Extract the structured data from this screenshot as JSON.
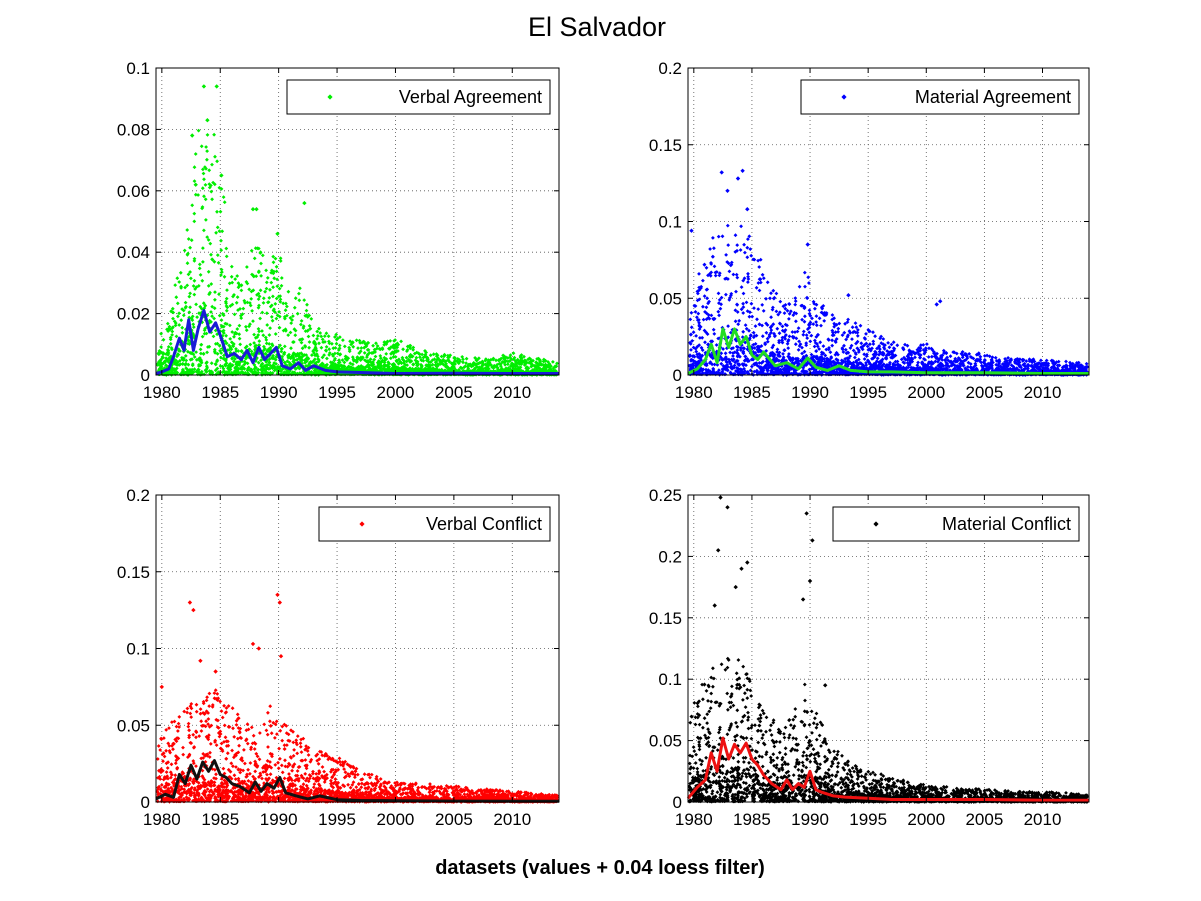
{
  "figure": {
    "title": "El Salvador",
    "xlabel": "datasets (values + 0.04 loess filter)"
  },
  "chart_data": [
    {
      "type": "scatter",
      "title": "",
      "legend": "Verbal Agreement",
      "legend_position": "top-right",
      "point_color": "#00ee00",
      "smooth_color": "#1a1ad6",
      "xlim": [
        1979.5,
        2014
      ],
      "ylim": [
        0,
        0.1
      ],
      "xticks": [
        1980,
        1985,
        1990,
        1995,
        2000,
        2005,
        2010
      ],
      "yticks": [
        0,
        0.02,
        0.04,
        0.06,
        0.08,
        0.1
      ],
      "ytick_labels": [
        "0",
        "0.02",
        "0.04",
        "0.06",
        "0.08",
        "0.1"
      ],
      "grid": true,
      "envelope": {
        "x": [
          1979.5,
          1980.5,
          1981.5,
          1982,
          1982.5,
          1983,
          1983.5,
          1984,
          1984.5,
          1985,
          1986,
          1987,
          1988,
          1989,
          1990,
          1991,
          1992,
          1993,
          1994,
          1996,
          1998,
          2000,
          2002,
          2005,
          2008,
          2010,
          2014
        ],
        "y": [
          0.016,
          0.02,
          0.035,
          0.045,
          0.06,
          0.08,
          0.09,
          0.08,
          0.095,
          0.07,
          0.035,
          0.03,
          0.05,
          0.033,
          0.045,
          0.025,
          0.03,
          0.017,
          0.014,
          0.012,
          0.01,
          0.012,
          0.008,
          0.006,
          0.005,
          0.007,
          0.004
        ]
      },
      "peaks": [
        [
          1983.6,
          0.094
        ],
        [
          1984.7,
          0.094
        ],
        [
          1983.9,
          0.083
        ],
        [
          1982.6,
          0.078
        ],
        [
          1987.8,
          0.054
        ],
        [
          1988.1,
          0.054
        ],
        [
          1992.2,
          0.056
        ],
        [
          1989.9,
          0.046
        ],
        [
          1985.1,
          0.065
        ],
        [
          1982.9,
          0.062
        ]
      ],
      "smooth": {
        "x": [
          1979.5,
          1980,
          1980.6,
          1981,
          1981.5,
          1981.9,
          1982.3,
          1982.7,
          1983.1,
          1983.6,
          1984.1,
          1984.6,
          1985,
          1985.6,
          1986.2,
          1986.8,
          1987.3,
          1987.8,
          1988.3,
          1988.8,
          1989.3,
          1989.8,
          1990.3,
          1991,
          1991.7,
          1992.3,
          1993,
          1994,
          1995,
          1997,
          2000,
          2005,
          2010,
          2014
        ],
        "y": [
          0.0005,
          0.001,
          0.002,
          0.006,
          0.012,
          0.008,
          0.018,
          0.008,
          0.015,
          0.021,
          0.014,
          0.017,
          0.013,
          0.006,
          0.007,
          0.005,
          0.008,
          0.004,
          0.009,
          0.005,
          0.007,
          0.009,
          0.003,
          0.002,
          0.004,
          0.0015,
          0.003,
          0.0015,
          0.001,
          0.0008,
          0.0005,
          0.0006,
          0.0005,
          0.0005
        ]
      }
    },
    {
      "type": "scatter",
      "title": "",
      "legend": "Material Agreement",
      "legend_position": "top-right",
      "point_color": "#0000ff",
      "smooth_color": "#22dd22",
      "xlim": [
        1979.5,
        2014
      ],
      "ylim": [
        0,
        0.2
      ],
      "xticks": [
        1980,
        1985,
        1990,
        1995,
        2000,
        2005,
        2010
      ],
      "yticks": [
        0,
        0.05,
        0.1,
        0.15,
        0.2
      ],
      "ytick_labels": [
        "0",
        "0.05",
        "0.1",
        "0.15",
        "0.2"
      ],
      "grid": true,
      "envelope": {
        "x": [
          1979.5,
          1980.5,
          1981.5,
          1982.5,
          1983.5,
          1984.5,
          1985.5,
          1986.5,
          1987.5,
          1988.5,
          1989.5,
          1990.5,
          1992,
          1994,
          1996,
          1998,
          2000,
          2002,
          2004,
          2006,
          2008,
          2010,
          2014
        ],
        "y": [
          0.03,
          0.07,
          0.09,
          0.1,
          0.1,
          0.1,
          0.08,
          0.06,
          0.05,
          0.045,
          0.07,
          0.05,
          0.04,
          0.035,
          0.025,
          0.02,
          0.02,
          0.015,
          0.015,
          0.012,
          0.01,
          0.01,
          0.007
        ]
      },
      "peaks": [
        [
          1982.4,
          0.132
        ],
        [
          1983.8,
          0.128
        ],
        [
          1984.2,
          0.133
        ],
        [
          1984.6,
          0.108
        ],
        [
          1979.8,
          0.094
        ],
        [
          1989.8,
          0.085
        ],
        [
          2001.2,
          0.048
        ],
        [
          2000.9,
          0.046
        ],
        [
          1993.3,
          0.052
        ],
        [
          1982.9,
          0.12
        ]
      ],
      "smooth": {
        "x": [
          1979.5,
          1980.3,
          1981,
          1981.5,
          1982,
          1982.5,
          1983,
          1983.5,
          1984,
          1984.5,
          1985,
          1985.5,
          1986,
          1987,
          1988,
          1989,
          1989.8,
          1990.5,
          1991.5,
          1992.5,
          1993.5,
          1995,
          1997,
          2000,
          2005,
          2010,
          2014
        ],
        "y": [
          0.001,
          0.004,
          0.01,
          0.02,
          0.008,
          0.03,
          0.018,
          0.03,
          0.02,
          0.025,
          0.013,
          0.01,
          0.015,
          0.006,
          0.008,
          0.004,
          0.011,
          0.005,
          0.003,
          0.006,
          0.003,
          0.002,
          0.002,
          0.0015,
          0.0015,
          0.001,
          0.001
        ]
      }
    },
    {
      "type": "scatter",
      "title": "",
      "legend": "Verbal Conflict",
      "legend_position": "top-right",
      "point_color": "#ff0000",
      "smooth_color": "#111111",
      "xlim": [
        1979.5,
        2014
      ],
      "ylim": [
        0,
        0.2
      ],
      "xticks": [
        1980,
        1985,
        1990,
        1995,
        2000,
        2005,
        2010
      ],
      "yticks": [
        0,
        0.05,
        0.1,
        0.15,
        0.2
      ],
      "ytick_labels": [
        "0",
        "0.05",
        "0.1",
        "0.15",
        "0.2"
      ],
      "grid": true,
      "envelope": {
        "x": [
          1979.5,
          1980.5,
          1981.5,
          1982.5,
          1983.5,
          1984.5,
          1985.5,
          1986.5,
          1987.5,
          1988.5,
          1989.5,
          1990.5,
          1991.5,
          1993,
          1995,
          1997,
          1999,
          2002,
          2005,
          2008,
          2011,
          2014
        ],
        "y": [
          0.045,
          0.05,
          0.06,
          0.065,
          0.07,
          0.075,
          0.065,
          0.06,
          0.05,
          0.045,
          0.07,
          0.05,
          0.045,
          0.035,
          0.03,
          0.02,
          0.015,
          0.012,
          0.01,
          0.008,
          0.006,
          0.004
        ]
      },
      "peaks": [
        [
          1982.4,
          0.13
        ],
        [
          1982.7,
          0.125
        ],
        [
          1989.9,
          0.135
        ],
        [
          1990.1,
          0.13
        ],
        [
          1987.8,
          0.103
        ],
        [
          1988.3,
          0.1
        ],
        [
          1990.2,
          0.095
        ],
        [
          1984.6,
          0.085
        ],
        [
          1980,
          0.075
        ],
        [
          1983.3,
          0.092
        ]
      ],
      "smooth": {
        "x": [
          1979.5,
          1980.3,
          1981,
          1981.5,
          1982,
          1982.5,
          1983,
          1983.5,
          1984,
          1984.5,
          1985,
          1985.5,
          1986,
          1986.7,
          1987.5,
          1988,
          1988.5,
          1989,
          1989.6,
          1990.1,
          1990.6,
          1991.5,
          1992.5,
          1993.5,
          1995,
          1997,
          2000,
          2005,
          2010,
          2014
        ],
        "y": [
          0.002,
          0.005,
          0.003,
          0.018,
          0.012,
          0.024,
          0.015,
          0.026,
          0.02,
          0.027,
          0.018,
          0.016,
          0.012,
          0.01,
          0.006,
          0.013,
          0.007,
          0.012,
          0.009,
          0.016,
          0.006,
          0.004,
          0.002,
          0.004,
          0.0015,
          0.001,
          0.0008,
          0.0006,
          0.0005,
          0.0005
        ]
      }
    },
    {
      "type": "scatter",
      "title": "",
      "legend": "Material Conflict",
      "legend_position": "top-right",
      "point_color": "#000000",
      "smooth_color": "#ee1111",
      "xlim": [
        1979.5,
        2014
      ],
      "ylim": [
        0,
        0.25
      ],
      "xticks": [
        1980,
        1985,
        1990,
        1995,
        2000,
        2005,
        2010
      ],
      "yticks": [
        0,
        0.05,
        0.1,
        0.15,
        0.2,
        0.25
      ],
      "ytick_labels": [
        "0",
        "0.05",
        "0.1",
        "0.15",
        "0.2",
        "0.25"
      ],
      "grid": true,
      "envelope": {
        "x": [
          1979.5,
          1980.5,
          1981.5,
          1982.5,
          1983.5,
          1984.5,
          1985.5,
          1986.5,
          1987.5,
          1988.5,
          1989.5,
          1990.5,
          1991.5,
          1993,
          1995,
          1997,
          1999,
          2002,
          2005,
          2008,
          2011,
          2014
        ],
        "y": [
          0.06,
          0.1,
          0.11,
          0.12,
          0.12,
          0.11,
          0.09,
          0.07,
          0.06,
          0.07,
          0.1,
          0.08,
          0.05,
          0.035,
          0.025,
          0.02,
          0.015,
          0.012,
          0.01,
          0.008,
          0.008,
          0.005
        ]
      },
      "peaks": [
        [
          1982.3,
          0.248
        ],
        [
          1982.9,
          0.24
        ],
        [
          1982.1,
          0.205
        ],
        [
          1984.1,
          0.19
        ],
        [
          1984.6,
          0.195
        ],
        [
          1989.7,
          0.235
        ],
        [
          1990.2,
          0.213
        ],
        [
          1990.0,
          0.18
        ],
        [
          1989.4,
          0.165
        ],
        [
          1991.3,
          0.095
        ],
        [
          1981.8,
          0.16
        ],
        [
          1983.6,
          0.175
        ]
      ],
      "smooth": {
        "x": [
          1979.5,
          1980.3,
          1981,
          1981.5,
          1982,
          1982.5,
          1983,
          1983.5,
          1984,
          1984.5,
          1985,
          1985.5,
          1986,
          1986.7,
          1987.5,
          1988,
          1988.5,
          1989,
          1989.5,
          1990,
          1990.5,
          1991,
          1992,
          1993,
          1995,
          1997,
          2000,
          2005,
          2010,
          2014
        ],
        "y": [
          0.003,
          0.012,
          0.018,
          0.04,
          0.025,
          0.052,
          0.035,
          0.047,
          0.04,
          0.048,
          0.035,
          0.03,
          0.022,
          0.015,
          0.01,
          0.018,
          0.01,
          0.015,
          0.012,
          0.025,
          0.01,
          0.008,
          0.005,
          0.004,
          0.003,
          0.002,
          0.002,
          0.002,
          0.0015,
          0.0015
        ]
      }
    }
  ]
}
